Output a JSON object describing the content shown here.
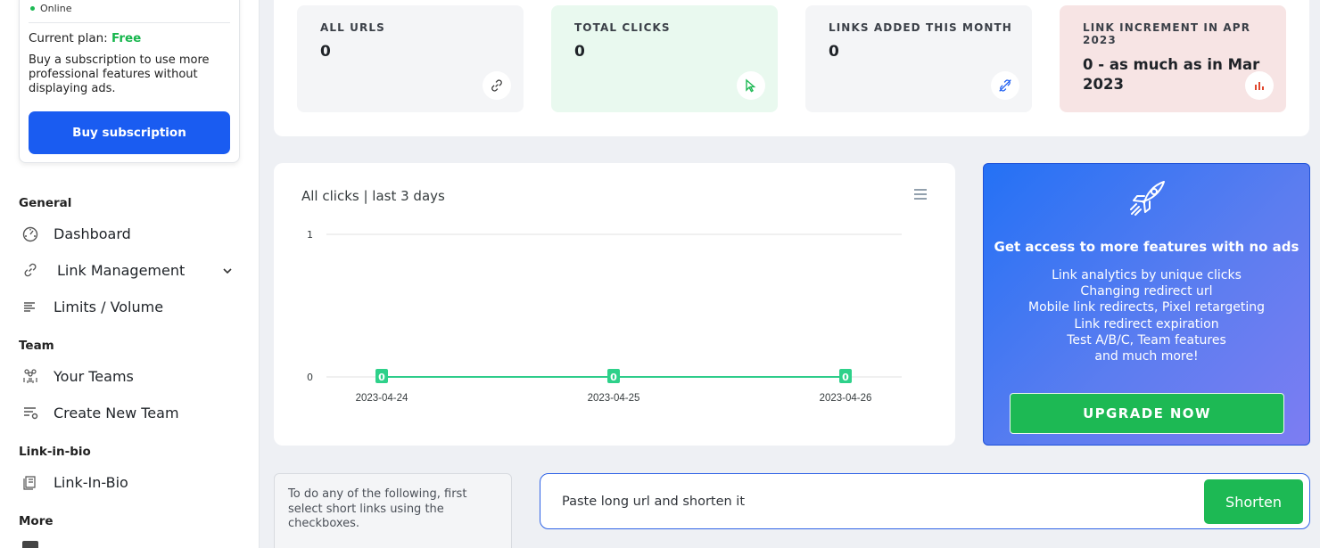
{
  "sidebar": {
    "profile": {
      "status": "Online",
      "plan_label": "Current plan:",
      "plan_value": "Free",
      "description": "Buy a subscription to use more professional features without displaying ads.",
      "buy_button": "Buy subscription"
    },
    "sections": {
      "general": "General",
      "team": "Team",
      "link_in_bio": "Link-in-bio",
      "more": "More"
    },
    "items": {
      "dashboard": "Dashboard",
      "link_management": "Link Management",
      "limits": "Limits / Volume",
      "your_teams": "Your Teams",
      "create_team": "Create New Team",
      "link_in_bio": "Link-In-Bio"
    }
  },
  "stats": [
    {
      "label": "ALL URLS",
      "value": "0",
      "icon": "link-icon",
      "bg": "#f4f5f7"
    },
    {
      "label": "TOTAL CLICKS",
      "value": "0",
      "icon": "cursor-icon",
      "bg": "#e9f9ef"
    },
    {
      "label": "LINKS ADDED THIS MONTH",
      "value": "0",
      "icon": "unlink-icon",
      "bg": "#f4f5f7"
    },
    {
      "label": "LINK INCREMENT IN APR 2023",
      "value": "0 - as much as in Mar 2023",
      "icon": "bar-chart-icon",
      "bg": "#f7e4e4"
    }
  ],
  "chart": {
    "title": "All clicks | last 3 days"
  },
  "chart_data": {
    "type": "line",
    "title": "All clicks | last 3 days",
    "categories": [
      "2023-04-24",
      "2023-04-25",
      "2023-04-26"
    ],
    "series": [
      {
        "values": [
          0,
          0,
          0
        ]
      }
    ],
    "data_labels": [
      "0",
      "0",
      "0"
    ],
    "y_ticks": [
      "0",
      "1"
    ],
    "ylim": [
      0,
      1
    ],
    "grid": true,
    "color": "#2ecc8a"
  },
  "upgrade": {
    "title": "Get access to more features with no ads",
    "lines": [
      "Link analytics by unique clicks",
      "Changing redirect url",
      "Mobile link redirects, Pixel retargeting",
      "Link redirect expiration",
      "Test A/B/C, Team features",
      "and much more!"
    ],
    "button": "UPGRADE NOW"
  },
  "bulk": {
    "hint": "To do any of the following, first select short links using the checkboxes."
  },
  "shorten": {
    "placeholder": "Paste long url and shorten it",
    "button": "Shorten"
  },
  "colors": {
    "primary": "#1a5cf1",
    "success": "#1db954"
  }
}
